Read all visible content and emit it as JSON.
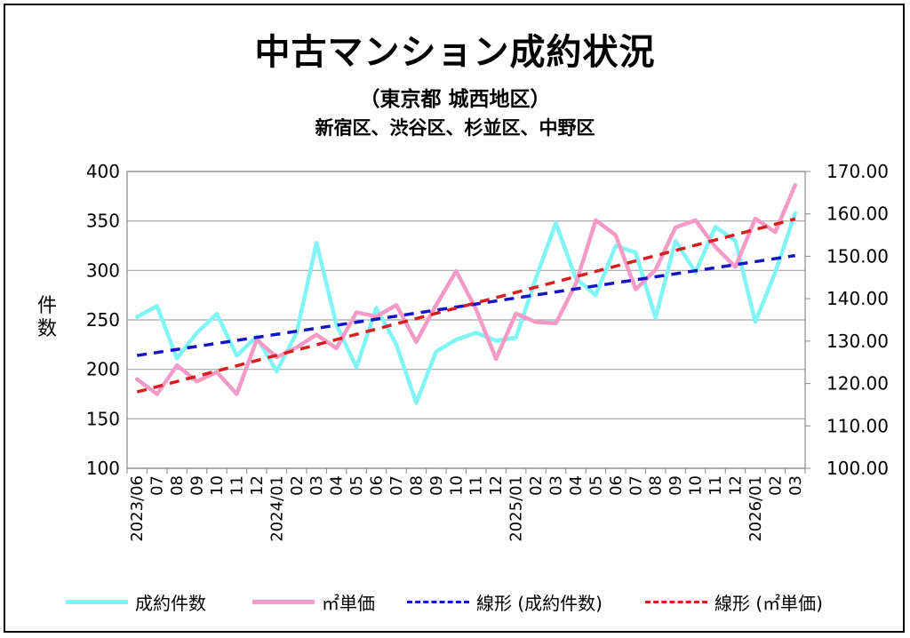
{
  "title_main": "中古マンション成約状況",
  "title_sub": "（東京都 城西地区）",
  "title_areas": "新宿区、渋谷区、杉並区、中野区",
  "y_left_label": "件数",
  "colors": {
    "count": "#7ff5f5",
    "unit_price": "#f39ac6",
    "count_trend": "#1515c8",
    "unit_trend": "#d81f1f",
    "grid": "#a6a6a6"
  },
  "chart_data": {
    "type": "line",
    "title": "中古マンション成約状況",
    "subtitle": "（東京都 城西地区） 新宿区、渋谷区、杉並区、中野区",
    "x_labels": [
      "2023/06",
      "07",
      "08",
      "09",
      "10",
      "11",
      "12",
      "2024/01",
      "02",
      "03",
      "04",
      "05",
      "06",
      "07",
      "08",
      "09",
      "10",
      "11",
      "12",
      "2025/01",
      "02",
      "03",
      "04",
      "05",
      "06",
      "07",
      "08",
      "09",
      "10",
      "11",
      "12",
      "2026/01",
      "02",
      "03"
    ],
    "y_left": {
      "label": "件数",
      "min": 100,
      "max": 400,
      "ticks": [
        "400",
        "350",
        "300",
        "250",
        "200",
        "150",
        "100"
      ]
    },
    "y_right": {
      "label": "",
      "min": 100,
      "max": 170,
      "ticks": [
        "170.00",
        "160.00",
        "150.00",
        "140.00",
        "130.00",
        "120.00",
        "110.00",
        "100.00"
      ]
    },
    "grid": true,
    "legend_position": "bottom",
    "series": [
      {
        "name": "成約件数",
        "axis": "left",
        "values": [
          253,
          264,
          211,
          237,
          256,
          214,
          233,
          198,
          237,
          328,
          245,
          202,
          262,
          225,
          166,
          218,
          230,
          237,
          229,
          232,
          292,
          348,
          292,
          275,
          325,
          318,
          252,
          330,
          298,
          344,
          330,
          248,
          298,
          358
        ]
      },
      {
        "name": "㎡単価",
        "axis": "right",
        "values": [
          121.0,
          117.5,
          124.3,
          120.5,
          122.7,
          117.5,
          130.3,
          126.2,
          128.5,
          131.5,
          128.3,
          136.8,
          135.8,
          138.5,
          129.8,
          138.5,
          146.5,
          137.5,
          125.8,
          136.5,
          134.5,
          134.2,
          143.5,
          158.5,
          155.0,
          142.2,
          146.8,
          156.8,
          158.5,
          152.2,
          147.5,
          158.9,
          155.7,
          166.8
        ]
      },
      {
        "name": "線形 (成約件数)",
        "axis": "left",
        "style": "dashed",
        "from": 214,
        "to": 315
      },
      {
        "name": "線形 (㎡単価)",
        "axis": "right",
        "style": "dashed",
        "from": 118.0,
        "to": 158.8
      }
    ]
  }
}
